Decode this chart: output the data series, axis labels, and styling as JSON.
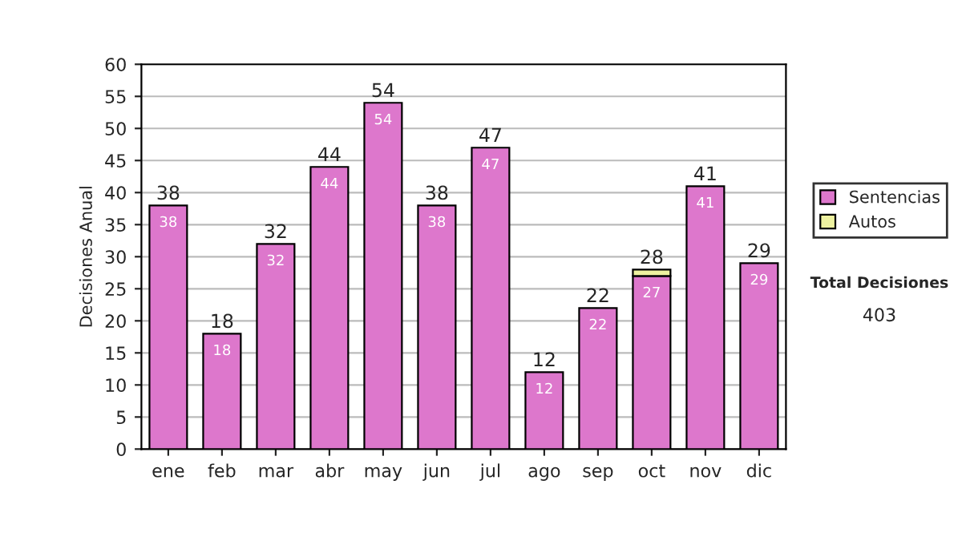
{
  "chart_data": {
    "type": "bar",
    "stacked": true,
    "ylabel": "Decisiones Anual",
    "categories": [
      "ene",
      "feb",
      "mar",
      "abr",
      "may",
      "jun",
      "jul",
      "ago",
      "sep",
      "oct",
      "nov",
      "dic"
    ],
    "series": [
      {
        "name": "Sentencias",
        "color": "#dd77cc",
        "values": [
          38,
          18,
          32,
          44,
          54,
          38,
          47,
          12,
          22,
          27,
          41,
          29
        ],
        "value_labels": [
          "38",
          "18",
          "32",
          "44",
          "54",
          "38",
          "47",
          "12",
          "22",
          "27",
          "41",
          "29"
        ]
      },
      {
        "name": "Autos",
        "color": "#eef2a0",
        "values": [
          null,
          null,
          null,
          null,
          null,
          null,
          null,
          null,
          null,
          1,
          null,
          null
        ]
      }
    ],
    "totals": [
      "38",
      "18",
      "32",
      "44",
      "54",
      "38",
      "47",
      "12",
      "22",
      "28",
      "41",
      "29"
    ],
    "ylim": [
      0,
      60
    ],
    "yticks": [
      0,
      5,
      10,
      15,
      20,
      25,
      30,
      35,
      40,
      45,
      50,
      55,
      60
    ],
    "grid": "y",
    "legend": "right",
    "annotations": [
      "Total Decisiones",
      "403"
    ]
  }
}
